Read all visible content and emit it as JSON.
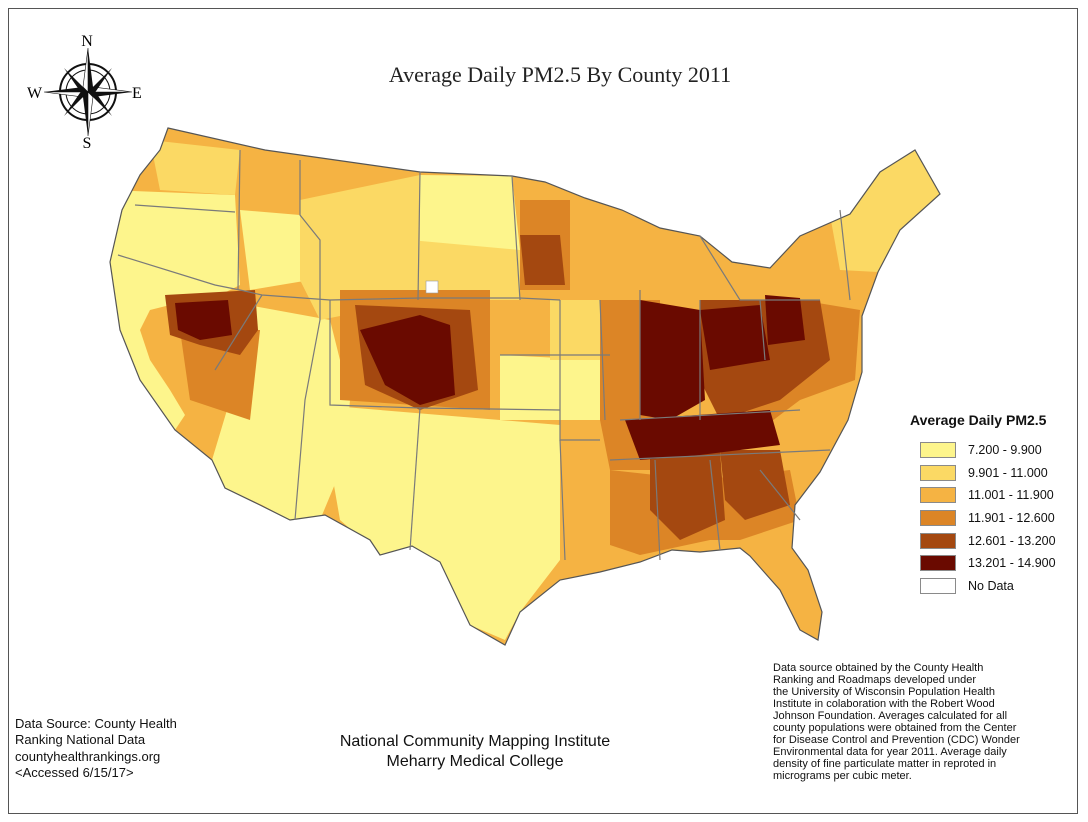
{
  "title": "Average Daily PM2.5 By County 2011",
  "compass": {
    "n": "N",
    "s": "S",
    "e": "E",
    "w": "W"
  },
  "legend": {
    "title": "Average Daily PM2.5",
    "items": [
      {
        "label": "7.200 - 9.900",
        "color": "#fdf58c"
      },
      {
        "label": "9.901 - 11.000",
        "color": "#fbd964"
      },
      {
        "label": "11.001 - 11.900",
        "color": "#f5b343"
      },
      {
        "label": "11.901 - 12.600",
        "color": "#dc8526"
      },
      {
        "label": "12.601 - 13.200",
        "color": "#a44810"
      },
      {
        "label": "13.201 - 14.900",
        "color": "#6a0a00"
      },
      {
        "label": "No Data",
        "color": "#ffffff"
      }
    ]
  },
  "source_left": {
    "line1": "Data Source: County Health",
    "line2": "Ranking National Data",
    "line3": "countyhealthrankings.org",
    "line4": "<Accessed 6/15/17>"
  },
  "institute": {
    "line1": "National Community Mapping Institute",
    "line2": "Meharry Medical College"
  },
  "source_right": {
    "line1": "Data source obtained by the County Health",
    "line2": "Ranking and Roadmaps developed under",
    "line3": "the University of Wisconsin Population Health",
    "line4": "Institute in colaboration with the Robert Wood",
    "line5": "Johnson Foundation. Averages calculated for all",
    "line6": "county populations were obtained from the Center",
    "line7": "for Disease Control and Prevention (CDC) Wonder",
    "line8": "Environmental data for year 2011. Average daily",
    "line9": "density of fine particulate matter in reproted in",
    "line10": "micrograms per cubic meter."
  }
}
